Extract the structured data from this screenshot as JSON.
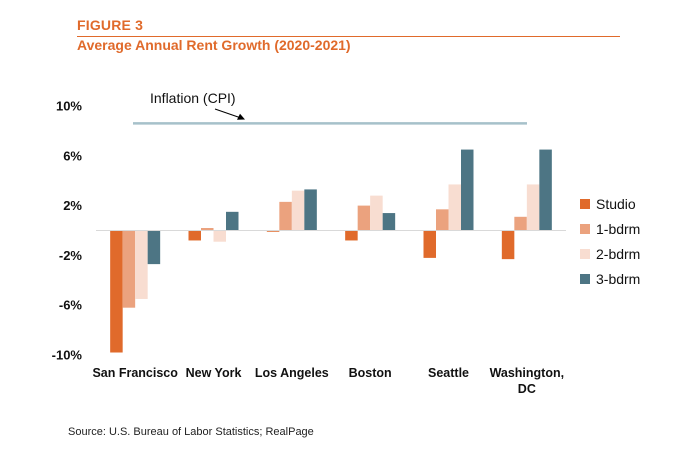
{
  "header": {
    "figure_label": "FIGURE 3",
    "title": "Average Annual Rent Growth (2020-2021)"
  },
  "source": "Source: U.S. Bureau of Labor Statistics; RealPage",
  "colors": {
    "Studio": "#e06a2b",
    "1-bdrm": "#eba27e",
    "2-bdrm": "#f8ddd1",
    "3-bdrm": "#4d7584",
    "inflation": "#a6c1ca",
    "title": "#e06a2b"
  },
  "chart_data": {
    "type": "bar",
    "title": "Average Annual Rent Growth (2020-2021)",
    "xlabel": "",
    "ylabel": "",
    "ylim": [
      -10,
      10
    ],
    "y_ticks": [
      10,
      6,
      2,
      -2,
      -6,
      -10
    ],
    "y_tick_labels": [
      "10%",
      "6%",
      "2%",
      "-2%",
      "-6%",
      "-10%"
    ],
    "categories": [
      "San Francisco",
      "New York",
      "Los Angeles",
      "Boston",
      "Seattle",
      "Washington, DC"
    ],
    "category_lines": [
      [
        "San Francisco"
      ],
      [
        "New York"
      ],
      [
        "Los Angeles"
      ],
      [
        "Boston"
      ],
      [
        "Seattle"
      ],
      [
        "Washington,",
        "DC"
      ]
    ],
    "series": [
      {
        "name": "Studio",
        "values": [
          -9.8,
          -0.8,
          -0.1,
          -0.8,
          -2.2,
          -2.3
        ]
      },
      {
        "name": "1-bdrm",
        "values": [
          -6.2,
          0.2,
          2.3,
          2.0,
          1.7,
          1.1
        ]
      },
      {
        "name": "2-bdrm",
        "values": [
          -5.5,
          -0.9,
          3.2,
          2.8,
          3.7,
          3.7
        ]
      },
      {
        "name": "3-bdrm",
        "values": [
          -2.7,
          1.5,
          3.3,
          1.4,
          6.5,
          6.5
        ]
      }
    ],
    "annotations": [
      {
        "text": "Inflation (CPI)",
        "value": 8.6
      }
    ],
    "grid": false,
    "legend_position": "right"
  }
}
